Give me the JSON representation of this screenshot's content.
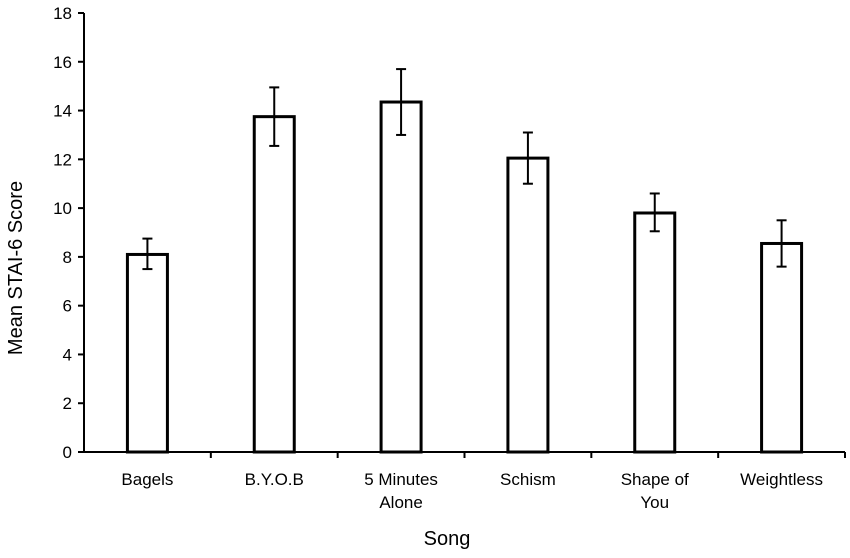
{
  "chart_data": {
    "type": "bar",
    "title": "",
    "xlabel": "Song",
    "ylabel": "Mean STAI-6 Score",
    "ylim": [
      0,
      18
    ],
    "yticks": [
      "0",
      "2",
      "4",
      "6",
      "8",
      "10",
      "12",
      "14",
      "16",
      "18"
    ],
    "categories": [
      [
        "Bagels"
      ],
      [
        "B.Y.O.B"
      ],
      [
        "5 Minutes",
        "Alone"
      ],
      [
        "Schism"
      ],
      [
        "Shape of",
        "You"
      ],
      [
        "Weightless"
      ]
    ],
    "values": [
      8.1,
      13.75,
      14.35,
      12.05,
      9.8,
      8.55
    ],
    "error_low": [
      7.5,
      12.55,
      13.0,
      11.0,
      9.05,
      7.6
    ],
    "error_high": [
      8.75,
      14.95,
      15.7,
      13.1,
      10.6,
      9.5
    ],
    "grid": false,
    "legend": "none",
    "colors": {
      "bar_fill": "#ffffff",
      "bar_stroke": "#000000",
      "axis": "#000000"
    }
  }
}
